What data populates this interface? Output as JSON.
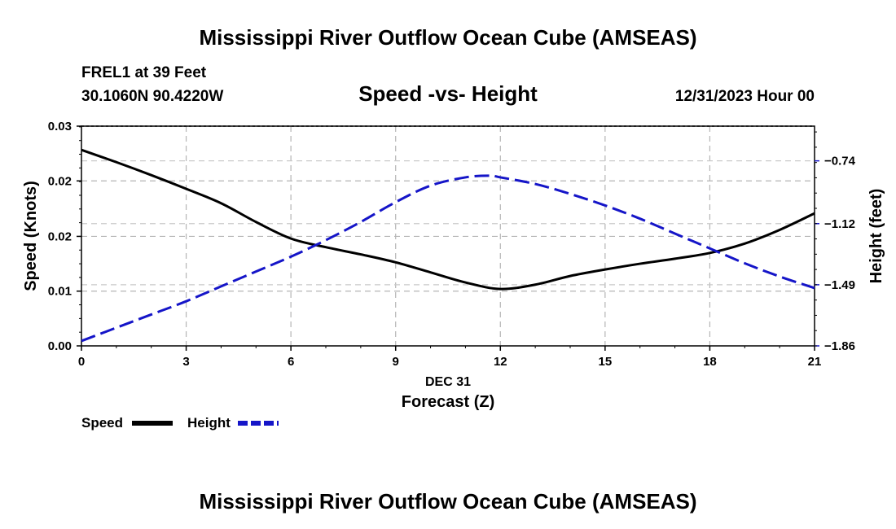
{
  "header": {
    "title": "Mississippi River Outflow Ocean Cube (AMSEAS)",
    "station": "FREL1 at 39 Feet",
    "coords": "30.1060N  90.4220W",
    "chart_subtitle": "Speed -vs- Height",
    "datetime": "12/31/2023 Hour 00"
  },
  "footer": {
    "title": "Mississippi River Outflow Ocean Cube (AMSEAS)"
  },
  "legend": {
    "speed_label": "Speed",
    "height_label": "Height"
  },
  "colors": {
    "speed": "#000000",
    "height": "#1515c8"
  },
  "chart_data": {
    "type": "line",
    "title": "Speed -vs- Height",
    "xlabel": "Forecast (Z)",
    "xlabel_date": "DEC 31",
    "ylabel_left": "Speed (Knots)",
    "ylabel_right": "Height (feet)",
    "xlim": [
      0,
      21
    ],
    "ylim_left": [
      0,
      0.0305
    ],
    "ylim_right": [
      -1.86,
      -0.53
    ],
    "x_ticks": [
      0,
      3,
      6,
      9,
      12,
      15,
      18,
      21
    ],
    "x_tick_labels": [
      "0",
      "3",
      "6",
      "9",
      "12",
      "15",
      "18",
      "21"
    ],
    "y_left_ticks": [
      0,
      0.0076,
      0.0152,
      0.0229,
      0.0305
    ],
    "y_left_tick_labels": [
      "0.00",
      "0.01",
      "0.02",
      "0.02",
      "0.03"
    ],
    "y_right_ticks": [
      -1.86,
      -1.49,
      -1.12,
      -0.74
    ],
    "y_right_tick_labels": [
      "−1.86",
      "−1.49",
      "−1.12",
      "−0.74"
    ],
    "series": [
      {
        "name": "Speed",
        "axis": "left",
        "style": "solid",
        "x": [
          0,
          1,
          2,
          3,
          4,
          5,
          6,
          7,
          8,
          9,
          10,
          11,
          12,
          13,
          14,
          15,
          16,
          17,
          18,
          19,
          20,
          21
        ],
        "values": [
          0.0272,
          0.0255,
          0.0237,
          0.0218,
          0.0198,
          0.0172,
          0.0149,
          0.0137,
          0.0127,
          0.0116,
          0.0102,
          0.0088,
          0.0079,
          0.0085,
          0.0097,
          0.0106,
          0.0114,
          0.0121,
          0.0129,
          0.0142,
          0.0161,
          0.0184
        ]
      },
      {
        "name": "Height",
        "axis": "right",
        "style": "dashed",
        "x": [
          0,
          1,
          2,
          3,
          4,
          5,
          6,
          7,
          8,
          9,
          10,
          11,
          11.7,
          12,
          13,
          14,
          15,
          16,
          17,
          18,
          19,
          20,
          21
        ],
        "values": [
          -1.83,
          -1.75,
          -1.67,
          -1.59,
          -1.5,
          -1.41,
          -1.32,
          -1.22,
          -1.11,
          -0.99,
          -0.89,
          -0.84,
          -0.83,
          -0.84,
          -0.88,
          -0.94,
          -1.01,
          -1.09,
          -1.18,
          -1.27,
          -1.36,
          -1.44,
          -1.51
        ]
      }
    ]
  }
}
